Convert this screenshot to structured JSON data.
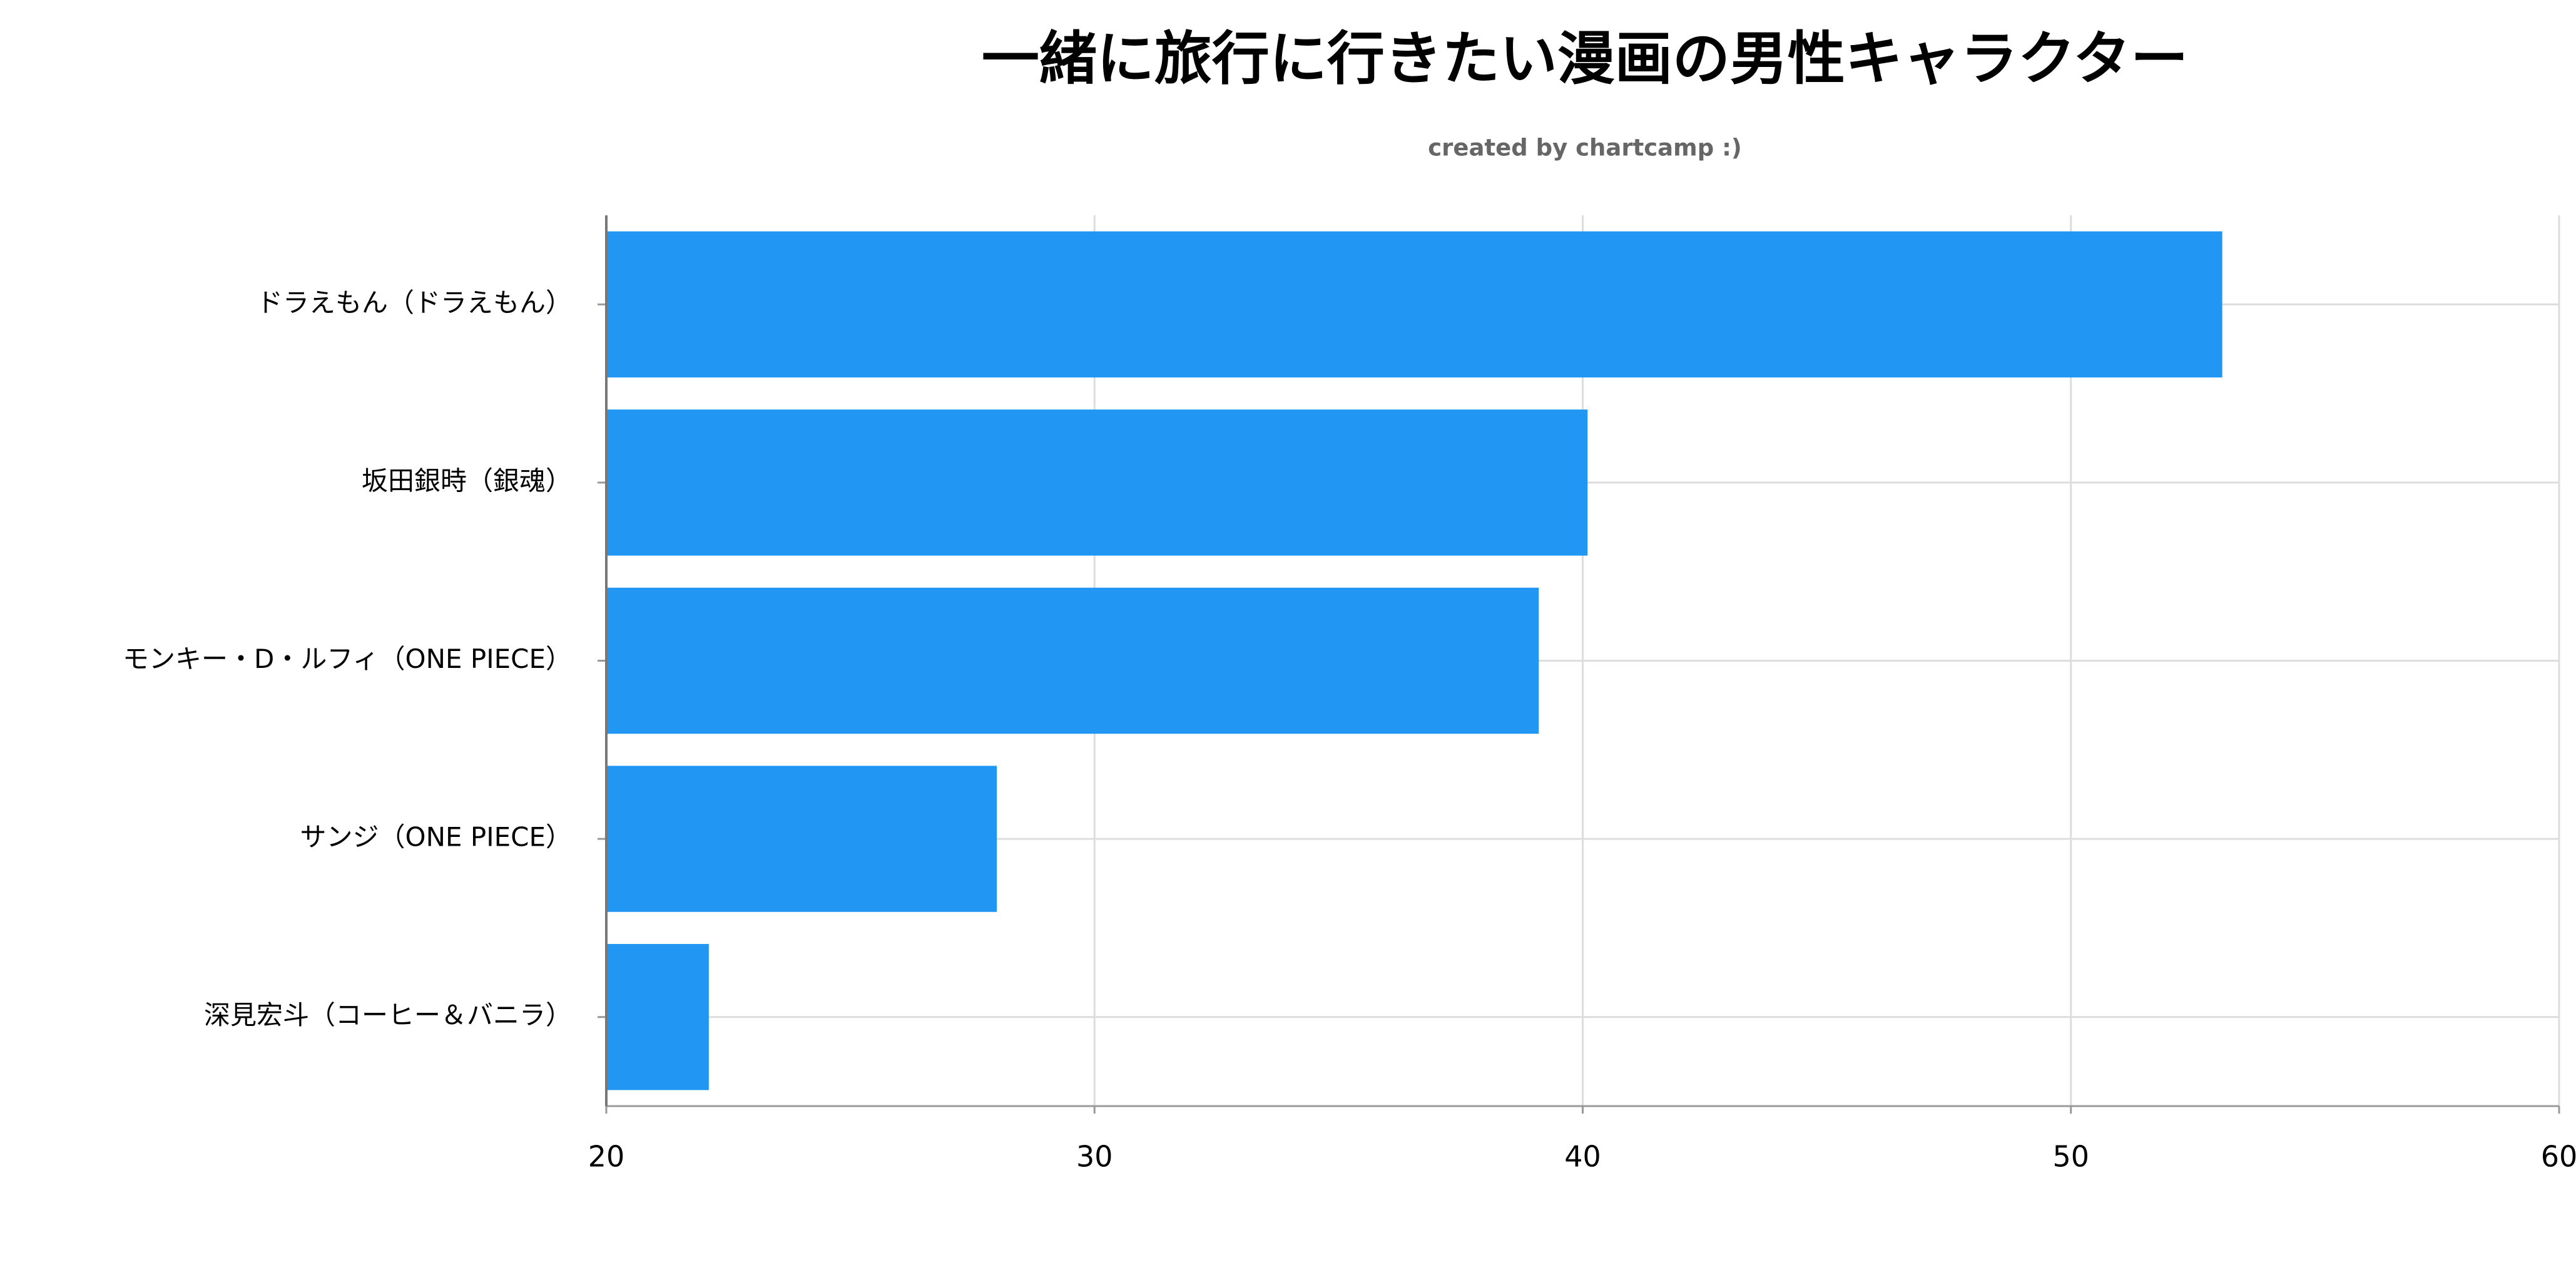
{
  "chart_data": {
    "type": "hbar",
    "title": "一緒に旅行に行きたい漫画の男性キャラクター",
    "subtitle": "created by chartcamp :)",
    "categories": [
      "ドラえもん（ドラえもん）",
      "坂田銀時（銀魂）",
      "モンキー・D・ルフィ（ONE PIECE）",
      "サンジ（ONE PIECE）",
      "深見宏斗（コーヒー＆バニラ）"
    ],
    "values": [
      53.1,
      40.1,
      39.1,
      28,
      22.1
    ],
    "color": "#2196f3",
    "xlim": [
      20,
      60
    ],
    "xticks": [
      20,
      30,
      40,
      50,
      60
    ],
    "grid": true
  }
}
